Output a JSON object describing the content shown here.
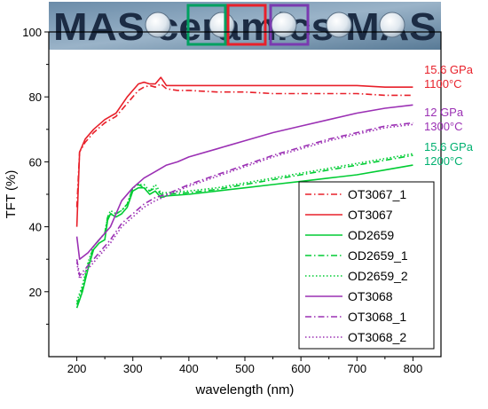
{
  "chart_data": {
    "type": "line",
    "title": "",
    "xlabel": "wavelength (nm)",
    "ylabel": "TFT (%)",
    "xlim": [
      150,
      850
    ],
    "ylim": [
      0,
      100
    ],
    "x_ticks": [
      200,
      300,
      400,
      500,
      600,
      700,
      800
    ],
    "y_ticks": [
      20,
      40,
      60,
      80,
      100
    ],
    "grid": false,
    "legend_position": "bottom-right",
    "photo_banner": {
      "text": "MAS ceramics MAS",
      "highlight_box_colors": [
        "#00a060",
        "#e8202a",
        "#7a3ab0"
      ]
    },
    "annotations": [
      {
        "line1": "15.6 GPa",
        "line2": "1100°C",
        "color": "#e8202a"
      },
      {
        "line1": "12 GPa",
        "line2": "1300°C",
        "color": "#9b30b4"
      },
      {
        "line1": "15.6 GPa",
        "line2": "1200°C",
        "color": "#00b070"
      }
    ],
    "series": [
      {
        "name": "OT3067_1",
        "color": "#e8202a",
        "dash": "dashdot",
        "x": [
          200,
          205,
          215,
          230,
          250,
          270,
          290,
          300,
          310,
          320,
          330,
          340,
          350,
          360,
          380,
          400,
          450,
          500,
          550,
          600,
          650,
          700,
          750,
          800
        ],
        "y": [
          46,
          63,
          66,
          69,
          72,
          74,
          78,
          80,
          82,
          83,
          83.5,
          83,
          84,
          82.5,
          82,
          82,
          81.5,
          81.5,
          81,
          81,
          81,
          81,
          80.5,
          80.5
        ]
      },
      {
        "name": "OT3067",
        "color": "#e8202a",
        "dash": "solid",
        "x": [
          200,
          205,
          215,
          230,
          250,
          270,
          290,
          300,
          310,
          320,
          330,
          340,
          350,
          360,
          380,
          400,
          450,
          500,
          550,
          600,
          650,
          700,
          750,
          800
        ],
        "y": [
          40,
          63,
          67,
          70,
          73,
          75,
          80,
          82,
          84,
          84.5,
          84,
          84,
          86,
          83.5,
          83.5,
          83.5,
          83.5,
          83.5,
          83.5,
          83.5,
          83.5,
          83.5,
          83,
          83
        ]
      },
      {
        "name": "OD2659",
        "color": "#00cc33",
        "dash": "solid",
        "x": [
          200,
          210,
          220,
          230,
          240,
          250,
          255,
          260,
          270,
          280,
          290,
          300,
          310,
          320,
          330,
          340,
          350,
          360,
          400,
          450,
          500,
          550,
          600,
          650,
          700,
          750,
          800
        ],
        "y": [
          15,
          20,
          27,
          33,
          35,
          36,
          42,
          44,
          43,
          44,
          46,
          51,
          52,
          52,
          50,
          51,
          49,
          49.5,
          50,
          51,
          52,
          53,
          54,
          55,
          56,
          57.5,
          59
        ]
      },
      {
        "name": "OD2659_1",
        "color": "#00cc33",
        "dash": "dashdot",
        "x": [
          200,
          210,
          220,
          230,
          240,
          250,
          255,
          260,
          270,
          280,
          290,
          300,
          310,
          320,
          330,
          340,
          350,
          360,
          400,
          450,
          500,
          550,
          600,
          650,
          700,
          750,
          800
        ],
        "y": [
          16,
          21,
          28,
          34,
          36,
          38,
          43,
          44,
          44,
          45,
          47,
          52,
          53,
          52,
          51,
          52,
          50,
          50,
          50.5,
          51.5,
          53,
          54.5,
          56,
          57.5,
          59,
          60.5,
          62
        ]
      },
      {
        "name": "OD2659_2",
        "color": "#00cc33",
        "dash": "dot",
        "x": [
          200,
          210,
          220,
          230,
          240,
          250,
          255,
          260,
          270,
          280,
          290,
          300,
          310,
          320,
          330,
          340,
          350,
          360,
          400,
          450,
          500,
          550,
          600,
          650,
          700,
          750,
          800
        ],
        "y": [
          17,
          22,
          29,
          34,
          36,
          38,
          43,
          45,
          44,
          45,
          47,
          52,
          53,
          53,
          51,
          53,
          50.5,
          50.5,
          51,
          52,
          53.5,
          55,
          56.5,
          58,
          59.5,
          61,
          62.5
        ]
      },
      {
        "name": "OT3068",
        "color": "#9b30b4",
        "dash": "solid",
        "x": [
          200,
          205,
          220,
          240,
          260,
          280,
          300,
          320,
          340,
          360,
          380,
          400,
          450,
          500,
          550,
          600,
          650,
          700,
          750,
          800
        ],
        "y": [
          37,
          30,
          32,
          36,
          40,
          48,
          52,
          55,
          57,
          59,
          60,
          61.5,
          64,
          66.5,
          69,
          71,
          73,
          75,
          76.5,
          77.5
        ]
      },
      {
        "name": "OT3068_1",
        "color": "#9b30b4",
        "dash": "dashdot",
        "x": [
          200,
          205,
          220,
          240,
          260,
          280,
          300,
          320,
          340,
          360,
          380,
          400,
          450,
          500,
          550,
          600,
          650,
          700,
          750,
          800
        ],
        "y": [
          30,
          25,
          28,
          32,
          36,
          41,
          44,
          47,
          49,
          50,
          51.5,
          53,
          56,
          59,
          62,
          64.5,
          67,
          69,
          71,
          72
        ]
      },
      {
        "name": "OT3068_2",
        "color": "#9b30b4",
        "dash": "dot",
        "x": [
          200,
          205,
          220,
          240,
          260,
          280,
          300,
          320,
          340,
          360,
          380,
          400,
          450,
          500,
          550,
          600,
          650,
          700,
          750,
          800
        ],
        "y": [
          29,
          24,
          27,
          31,
          35,
          40,
          43,
          46,
          48,
          49.5,
          51,
          52.5,
          55.5,
          58.5,
          61.5,
          64,
          66.5,
          68.5,
          70.5,
          71.5
        ]
      }
    ]
  }
}
